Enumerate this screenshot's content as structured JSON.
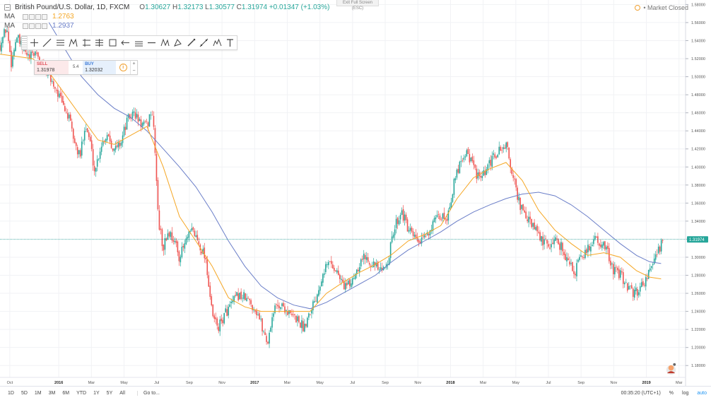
{
  "legend": {
    "title": "British Pound/U.S. Dollar, 1D, FXCM",
    "ohlc": [
      {
        "k": "O",
        "v": "1.30627"
      },
      {
        "k": "H",
        "v": "1.32173"
      },
      {
        "k": "L",
        "v": "1.30577"
      },
      {
        "k": "C",
        "v": "1.31974"
      }
    ],
    "change": "+0.01347 (+1.03%)",
    "indicators": [
      {
        "label": "MA",
        "value": "1.2763",
        "color": "#f5a623"
      },
      {
        "label": "MA",
        "value": "1.2937",
        "color": "#6a7ec8"
      }
    ]
  },
  "exit_fullscreen": "Exit Full Screen (ESC)",
  "market_status": "Market Closed",
  "order": {
    "sell_label": "SELL",
    "sell_price": "1.31978",
    "spread": "5.4",
    "buy_label": "BUY",
    "buy_price": "1.32032",
    "plus": "+",
    "minus": "−"
  },
  "toolbar_icons": [
    "cross-icon",
    "trend-line-icon",
    "horizontal-lines-icon",
    "pitchfork-icon",
    "gann-icon",
    "fib-icon",
    "rectangle-icon",
    "arrow-icon",
    "parallel-channel-icon",
    "horizontal-line-icon",
    "xabcd-icon",
    "triangle-icon",
    "brush-icon",
    "measure-icon",
    "elliott-icon",
    "text-icon"
  ],
  "bottom": {
    "timeframes": [
      "1D",
      "5D",
      "1M",
      "3M",
      "6M",
      "YTD",
      "1Y",
      "5Y",
      "All"
    ],
    "goto": "Go to...",
    "time": "00:35:20 (UTC+1)",
    "percent": "%",
    "log": "log",
    "auto": "auto"
  },
  "colors": {
    "up": "#26a69a",
    "down": "#ef5350",
    "ma_fast": "#f5a623",
    "ma_slow": "#6a7ec8",
    "price_line": "#26a69a"
  },
  "chart_data": {
    "type": "candlestick",
    "symbol": "GBPUSD",
    "y_ticks": [
      "1.58000",
      "1.56000",
      "1.54000",
      "1.52000",
      "1.50000",
      "1.48000",
      "1.46000",
      "1.44000",
      "1.42000",
      "1.40000",
      "1.38000",
      "1.36000",
      "1.34000",
      "1.32000",
      "1.30000",
      "1.28000",
      "1.26000",
      "1.24000",
      "1.22000",
      "1.20000",
      "1.18000"
    ],
    "ylim": [
      1.17,
      1.585
    ],
    "x_ticks": [
      {
        "label": "Oct",
        "t": 0.6
      },
      {
        "label": "2016",
        "t": 3.6
      },
      {
        "label": "Mar",
        "t": 5.6
      },
      {
        "label": "May",
        "t": 7.6
      },
      {
        "label": "Jul",
        "t": 9.6
      },
      {
        "label": "Sep",
        "t": 11.6
      },
      {
        "label": "Nov",
        "t": 13.6
      },
      {
        "label": "2017",
        "t": 15.6
      },
      {
        "label": "Mar",
        "t": 17.6
      },
      {
        "label": "May",
        "t": 19.6
      },
      {
        "label": "Jul",
        "t": 21.6
      },
      {
        "label": "Sep",
        "t": 23.6
      },
      {
        "label": "Nov",
        "t": 25.6
      },
      {
        "label": "2018",
        "t": 27.6
      },
      {
        "label": "Mar",
        "t": 29.6
      },
      {
        "label": "May",
        "t": 31.6
      },
      {
        "label": "Jul",
        "t": 33.6
      },
      {
        "label": "Sep",
        "t": 35.6
      },
      {
        "label": "Nov",
        "t": 37.6
      },
      {
        "label": "2019",
        "t": 39.6
      },
      {
        "label": "Mar",
        "t": 41.6
      }
    ],
    "xlim": [
      0,
      42
    ],
    "last_price": {
      "label": "1.31974",
      "value": 1.31974
    },
    "close_path": [
      [
        0.0,
        1.535
      ],
      [
        0.4,
        1.555
      ],
      [
        0.7,
        1.515
      ],
      [
        1.0,
        1.545
      ],
      [
        1.4,
        1.53
      ],
      [
        1.8,
        1.52
      ],
      [
        2.2,
        1.528
      ],
      [
        2.6,
        1.512
      ],
      [
        3.0,
        1.5
      ],
      [
        3.4,
        1.488
      ],
      [
        3.8,
        1.47
      ],
      [
        4.2,
        1.455
      ],
      [
        4.6,
        1.425
      ],
      [
        4.9,
        1.41
      ],
      [
        5.2,
        1.448
      ],
      [
        5.5,
        1.43
      ],
      [
        5.8,
        1.395
      ],
      [
        6.2,
        1.425
      ],
      [
        6.6,
        1.438
      ],
      [
        7.0,
        1.418
      ],
      [
        7.4,
        1.428
      ],
      [
        7.8,
        1.452
      ],
      [
        8.2,
        1.46
      ],
      [
        8.6,
        1.448
      ],
      [
        9.0,
        1.445
      ],
      [
        9.3,
        1.465
      ],
      [
        9.5,
        1.42
      ],
      [
        9.7,
        1.34
      ],
      [
        10.0,
        1.31
      ],
      [
        10.3,
        1.328
      ],
      [
        10.6,
        1.322
      ],
      [
        11.0,
        1.3
      ],
      [
        11.4,
        1.318
      ],
      [
        11.8,
        1.33
      ],
      [
        12.2,
        1.315
      ],
      [
        12.6,
        1.3
      ],
      [
        13.0,
        1.235
      ],
      [
        13.4,
        1.222
      ],
      [
        13.8,
        1.238
      ],
      [
        14.2,
        1.248
      ],
      [
        14.6,
        1.258
      ],
      [
        15.0,
        1.255
      ],
      [
        15.4,
        1.248
      ],
      [
        15.8,
        1.238
      ],
      [
        16.1,
        1.22
      ],
      [
        16.4,
        1.205
      ],
      [
        16.7,
        1.238
      ],
      [
        17.0,
        1.248
      ],
      [
        17.4,
        1.245
      ],
      [
        17.8,
        1.235
      ],
      [
        18.2,
        1.232
      ],
      [
        18.6,
        1.222
      ],
      [
        19.0,
        1.242
      ],
      [
        19.4,
        1.258
      ],
      [
        19.8,
        1.286
      ],
      [
        20.2,
        1.295
      ],
      [
        20.6,
        1.285
      ],
      [
        21.0,
        1.27
      ],
      [
        21.4,
        1.268
      ],
      [
        21.8,
        1.285
      ],
      [
        22.2,
        1.3
      ],
      [
        22.6,
        1.298
      ],
      [
        23.0,
        1.29
      ],
      [
        23.4,
        1.282
      ],
      [
        23.8,
        1.3
      ],
      [
        24.2,
        1.335
      ],
      [
        24.6,
        1.352
      ],
      [
        25.0,
        1.33
      ],
      [
        25.4,
        1.32
      ],
      [
        25.8,
        1.315
      ],
      [
        26.2,
        1.328
      ],
      [
        26.6,
        1.338
      ],
      [
        27.0,
        1.345
      ],
      [
        27.4,
        1.345
      ],
      [
        27.8,
        1.38
      ],
      [
        28.2,
        1.408
      ],
      [
        28.6,
        1.418
      ],
      [
        29.0,
        1.4
      ],
      [
        29.4,
        1.385
      ],
      [
        29.8,
        1.395
      ],
      [
        30.2,
        1.41
      ],
      [
        30.6,
        1.418
      ],
      [
        31.0,
        1.425
      ],
      [
        31.3,
        1.4
      ],
      [
        31.6,
        1.375
      ],
      [
        32.0,
        1.35
      ],
      [
        32.4,
        1.34
      ],
      [
        32.8,
        1.33
      ],
      [
        33.2,
        1.318
      ],
      [
        33.6,
        1.312
      ],
      [
        34.0,
        1.32
      ],
      [
        34.4,
        1.312
      ],
      [
        34.8,
        1.295
      ],
      [
        35.2,
        1.283
      ],
      [
        35.6,
        1.3
      ],
      [
        36.0,
        1.308
      ],
      [
        36.4,
        1.322
      ],
      [
        36.8,
        1.316
      ],
      [
        37.2,
        1.306
      ],
      [
        37.6,
        1.285
      ],
      [
        38.0,
        1.28
      ],
      [
        38.4,
        1.27
      ],
      [
        38.8,
        1.258
      ],
      [
        39.2,
        1.266
      ],
      [
        39.6,
        1.278
      ],
      [
        40.0,
        1.292
      ],
      [
        40.3,
        1.305
      ],
      [
        40.6,
        1.32
      ]
    ],
    "ma_fast": [
      [
        0.0,
        1.525
      ],
      [
        2.0,
        1.52
      ],
      [
        3.0,
        1.505
      ],
      [
        4.0,
        1.48
      ],
      [
        5.0,
        1.455
      ],
      [
        6.0,
        1.43
      ],
      [
        7.0,
        1.425
      ],
      [
        8.0,
        1.435
      ],
      [
        9.0,
        1.445
      ],
      [
        10.0,
        1.4
      ],
      [
        11.0,
        1.345
      ],
      [
        12.0,
        1.318
      ],
      [
        13.0,
        1.29
      ],
      [
        14.0,
        1.255
      ],
      [
        15.0,
        1.245
      ],
      [
        16.0,
        1.24
      ],
      [
        17.0,
        1.24
      ],
      [
        18.0,
        1.24
      ],
      [
        19.0,
        1.24
      ],
      [
        20.0,
        1.26
      ],
      [
        21.0,
        1.272
      ],
      [
        22.0,
        1.283
      ],
      [
        23.0,
        1.292
      ],
      [
        24.0,
        1.303
      ],
      [
        25.0,
        1.318
      ],
      [
        26.0,
        1.325
      ],
      [
        27.0,
        1.335
      ],
      [
        28.0,
        1.365
      ],
      [
        29.0,
        1.388
      ],
      [
        30.0,
        1.398
      ],
      [
        31.0,
        1.405
      ],
      [
        32.0,
        1.385
      ],
      [
        33.0,
        1.352
      ],
      [
        34.0,
        1.33
      ],
      [
        35.0,
        1.315
      ],
      [
        36.0,
        1.302
      ],
      [
        37.0,
        1.305
      ],
      [
        38.0,
        1.3
      ],
      [
        39.0,
        1.285
      ],
      [
        39.8,
        1.278
      ],
      [
        40.5,
        1.276
      ]
    ],
    "ma_slow": [
      [
        3.0,
        1.56
      ],
      [
        4.0,
        1.53
      ],
      [
        5.0,
        1.5
      ],
      [
        6.0,
        1.48
      ],
      [
        7.0,
        1.465
      ],
      [
        8.0,
        1.455
      ],
      [
        9.0,
        1.44
      ],
      [
        10.0,
        1.42
      ],
      [
        11.0,
        1.4
      ],
      [
        12.0,
        1.378
      ],
      [
        13.0,
        1.35
      ],
      [
        14.0,
        1.318
      ],
      [
        15.0,
        1.29
      ],
      [
        16.0,
        1.268
      ],
      [
        17.0,
        1.255
      ],
      [
        18.0,
        1.247
      ],
      [
        19.0,
        1.243
      ],
      [
        20.0,
        1.25
      ],
      [
        21.0,
        1.26
      ],
      [
        22.0,
        1.27
      ],
      [
        23.0,
        1.28
      ],
      [
        24.0,
        1.295
      ],
      [
        25.0,
        1.308
      ],
      [
        26.0,
        1.318
      ],
      [
        27.0,
        1.328
      ],
      [
        28.0,
        1.34
      ],
      [
        29.0,
        1.35
      ],
      [
        30.0,
        1.358
      ],
      [
        31.0,
        1.365
      ],
      [
        32.0,
        1.37
      ],
      [
        33.0,
        1.372
      ],
      [
        34.0,
        1.368
      ],
      [
        35.0,
        1.358
      ],
      [
        36.0,
        1.345
      ],
      [
        37.0,
        1.33
      ],
      [
        38.0,
        1.315
      ],
      [
        39.0,
        1.302
      ],
      [
        39.8,
        1.295
      ],
      [
        40.5,
        1.293
      ]
    ]
  }
}
